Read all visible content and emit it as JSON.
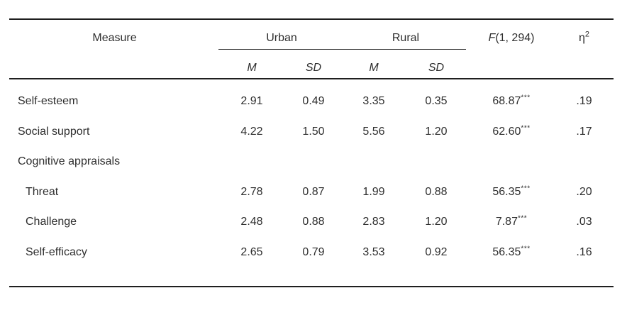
{
  "header": {
    "measure": "Measure",
    "group_urban": "Urban",
    "group_rural": "Rural",
    "f_symbol": "F",
    "f_df": "(1, 294)",
    "eta_symbol": "η",
    "eta_sup": "2",
    "urban_m": "M",
    "urban_sd": "SD",
    "rural_m": "M",
    "rural_sd": "SD"
  },
  "rows": [
    {
      "label": "Self-esteem",
      "urban_m": "2.91",
      "urban_sd": "0.49",
      "rural_m": "3.35",
      "rural_sd": "0.35",
      "f": "68.87",
      "sig": "***",
      "eta": ".19"
    },
    {
      "label": "Social support",
      "urban_m": "4.22",
      "urban_sd": "1.50",
      "rural_m": "5.56",
      "rural_sd": "1.20",
      "f": "62.60",
      "sig": "***",
      "eta": ".17"
    },
    {
      "label": "Cognitive appraisals",
      "urban_m": "",
      "urban_sd": "",
      "rural_m": "",
      "rural_sd": "",
      "f": "",
      "sig": "",
      "eta": ""
    },
    {
      "label": "Threat",
      "urban_m": "2.78",
      "urban_sd": "0.87",
      "rural_m": "1.99",
      "rural_sd": "0.88",
      "f": "56.35",
      "sig": "***",
      "eta": ".20"
    },
    {
      "label": "Challenge",
      "urban_m": "2.48",
      "urban_sd": "0.88",
      "rural_m": "2.83",
      "rural_sd": "1.20",
      "f": "7.87",
      "sig": "***",
      "eta": ".03"
    },
    {
      "label": "Self-efficacy",
      "urban_m": "2.65",
      "urban_sd": "0.79",
      "rural_m": "3.53",
      "rural_sd": "0.92",
      "f": "56.35",
      "sig": "***",
      "eta": ".16"
    }
  ],
  "colors": {
    "text": "#2e2e2e",
    "rule": "#1f1f1f",
    "background": "#ffffff"
  }
}
